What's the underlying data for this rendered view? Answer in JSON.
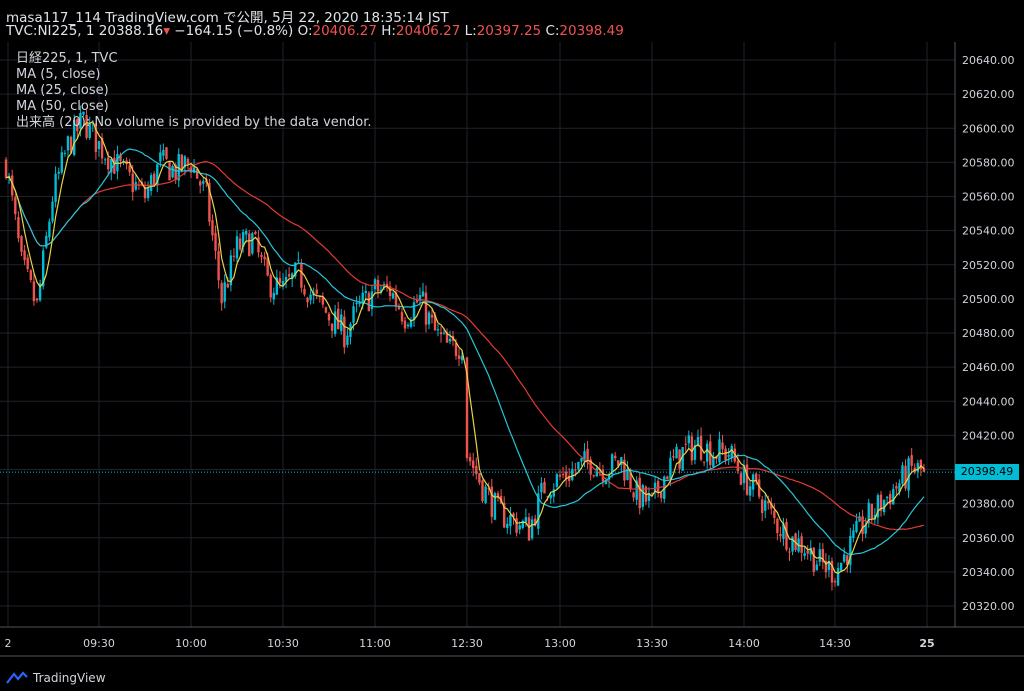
{
  "header": {
    "line1": "masa117_114 TradingView.com で公開, 5月 22, 2020 18:35:14 JST",
    "symbol": "TVC:NI225, 1",
    "last": "20388.16",
    "change": "−164.15 (−0.8%)",
    "o_label": "O:",
    "o_value": "20406.27",
    "h_label": "H:",
    "h_value": "20406.27",
    "l_label": "L:",
    "l_value": "20397.25",
    "c_label": "C:",
    "c_value": "20398.49"
  },
  "legend": [
    "日経225, 1, TVC",
    "MA (5, close)",
    "MA (25, close)",
    "MA (50, close)",
    "出来高 (20): No volume is provided by the data vendor."
  ],
  "footer": {
    "brand": "TradingView"
  },
  "colors": {
    "up": "#26a69a",
    "down": "#ef5350",
    "cyan_candle": "#00bcd4",
    "ma5": "#e8d34a",
    "ma25": "#26c6da",
    "ma50": "#e53935",
    "grid": "#1e222d",
    "last_price": "#00bcd4"
  },
  "chart_data": {
    "type": "candlestick",
    "ylim": [
      20310,
      20650
    ],
    "y_ticks": [
      20320,
      20340,
      20360,
      20380,
      20400,
      20420,
      20440,
      20460,
      20480,
      20500,
      20520,
      20540,
      20560,
      20580,
      20600,
      20620,
      20640
    ],
    "x_ticks": [
      "2",
      "09:30",
      "10:00",
      "10:30",
      "11:00",
      "12:30",
      "13:00",
      "13:30",
      "14:00",
      "14:30",
      "25"
    ],
    "last_price": 20398.49,
    "last_price_label": "20398.49",
    "approx_close_path": [
      [
        "09:00",
        20580
      ],
      [
        "09:05",
        20520
      ],
      [
        "09:10",
        20495
      ],
      [
        "09:15",
        20560
      ],
      [
        "09:20",
        20590
      ],
      [
        "09:25",
        20605
      ],
      [
        "09:30",
        20590
      ],
      [
        "09:35",
        20580
      ],
      [
        "09:40",
        20570
      ],
      [
        "09:45",
        20560
      ],
      [
        "09:50",
        20580
      ],
      [
        "09:55",
        20575
      ],
      [
        "10:00",
        20580
      ],
      [
        "10:05",
        20560
      ],
      [
        "10:10",
        20500
      ],
      [
        "10:15",
        20530
      ],
      [
        "10:20",
        20535
      ],
      [
        "10:25",
        20510
      ],
      [
        "10:30",
        20505
      ],
      [
        "10:35",
        20515
      ],
      [
        "10:40",
        20500
      ],
      [
        "10:45",
        20490
      ],
      [
        "10:50",
        20480
      ],
      [
        "10:55",
        20495
      ],
      [
        "11:00",
        20505
      ],
      [
        "11:05",
        20505
      ],
      [
        "11:10",
        20490
      ],
      [
        "11:15",
        20500
      ],
      [
        "11:20",
        20480
      ],
      [
        "11:25",
        20470
      ],
      [
        "11:30",
        20475
      ],
      [
        "12:30",
        20410
      ],
      [
        "12:35",
        20390
      ],
      [
        "12:40",
        20375
      ],
      [
        "12:45",
        20370
      ],
      [
        "12:50",
        20365
      ],
      [
        "12:55",
        20390
      ],
      [
        "13:00",
        20395
      ],
      [
        "13:05",
        20400
      ],
      [
        "13:10",
        20405
      ],
      [
        "13:15",
        20400
      ],
      [
        "13:20",
        20405
      ],
      [
        "13:25",
        20385
      ],
      [
        "13:30",
        20380
      ],
      [
        "13:35",
        20400
      ],
      [
        "13:40",
        20410
      ],
      [
        "13:45",
        20415
      ],
      [
        "13:50",
        20410
      ],
      [
        "13:55",
        20410
      ],
      [
        "14:00",
        20395
      ],
      [
        "14:05",
        20385
      ],
      [
        "14:10",
        20370
      ],
      [
        "14:15",
        20360
      ],
      [
        "14:20",
        20355
      ],
      [
        "14:25",
        20345
      ],
      [
        "14:30",
        20340
      ],
      [
        "14:35",
        20355
      ],
      [
        "14:40",
        20370
      ],
      [
        "14:45",
        20380
      ],
      [
        "14:50",
        20390
      ],
      [
        "14:55",
        20400
      ],
      [
        "15:00",
        20398.49
      ]
    ]
  }
}
